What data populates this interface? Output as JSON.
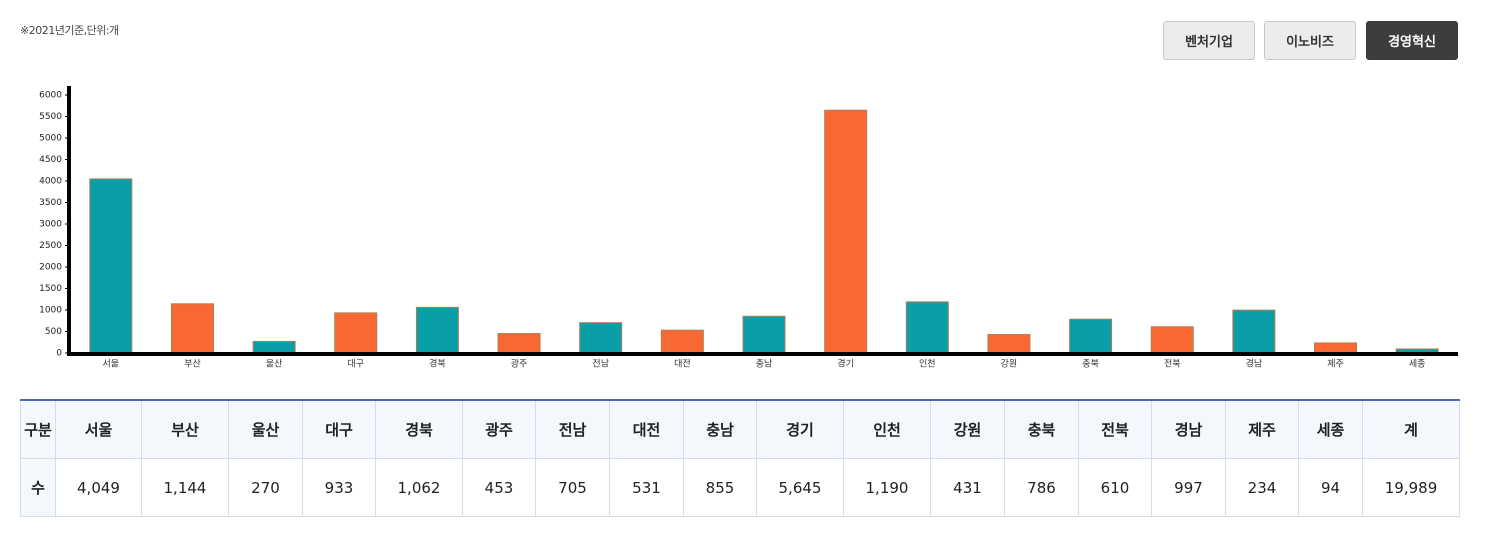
{
  "note": "※2021년기준,단위:개",
  "buttons": [
    "벤처기업",
    "이노비즈",
    "경영혁신"
  ],
  "chart_data": {
    "type": "bar",
    "categories": [
      "서울",
      "부산",
      "울산",
      "대구",
      "경북",
      "광주",
      "전남",
      "대전",
      "충남",
      "경기",
      "인천",
      "강원",
      "충북",
      "전북",
      "경남",
      "제주",
      "세종"
    ],
    "values": [
      4049,
      1144,
      270,
      933,
      1062,
      453,
      705,
      531,
      855,
      5645,
      1190,
      431,
      786,
      610,
      997,
      234,
      94
    ],
    "colors": [
      "#0a9ea8",
      "#f76835"
    ],
    "ylim": [
      0,
      6000
    ],
    "yticks": [
      0,
      500,
      1000,
      1500,
      2000,
      2500,
      3000,
      3500,
      4000,
      4500,
      5000,
      5500,
      6000
    ]
  },
  "table": {
    "header": [
      "구분",
      "서울",
      "부산",
      "울산",
      "대구",
      "경북",
      "광주",
      "전남",
      "대전",
      "충남",
      "경기",
      "인천",
      "강원",
      "충북",
      "전북",
      "경남",
      "제주",
      "세종",
      "계"
    ],
    "rows": [
      [
        "수",
        "4,049",
        "1,144",
        "270",
        "933",
        "1,062",
        "453",
        "705",
        "531",
        "855",
        "5,645",
        "1,190",
        "431",
        "786",
        "610",
        "997",
        "234",
        "94",
        "19,989"
      ]
    ]
  }
}
